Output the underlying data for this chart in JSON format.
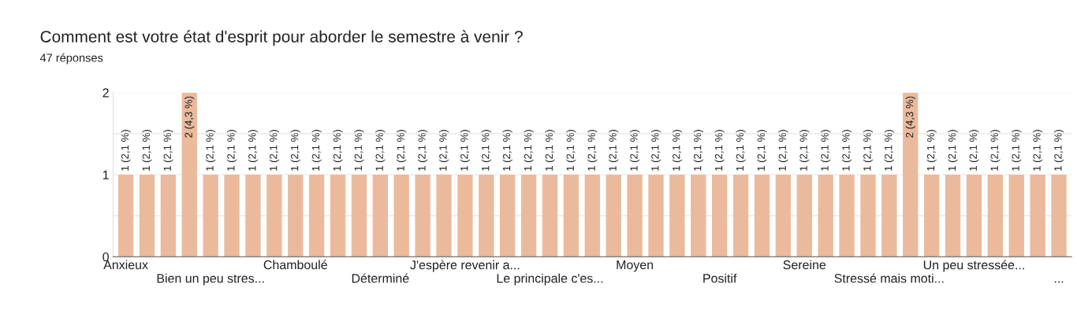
{
  "chart_data": {
    "type": "bar",
    "title": "Comment est votre état d'esprit pour aborder le semestre à venir ?",
    "subtitle": "47 réponses",
    "categories": [
      "Anxieux",
      null,
      null,
      null,
      "Bien un peu stres...",
      null,
      null,
      null,
      "Chamboulé",
      null,
      null,
      null,
      "Déterminé",
      null,
      null,
      null,
      "J'espère revenir a...",
      null,
      null,
      null,
      "Le principale c'es...",
      null,
      null,
      null,
      "Moyen",
      null,
      null,
      null,
      "Positif",
      null,
      null,
      null,
      "Sereine",
      null,
      null,
      null,
      "Stressé mais moti...",
      null,
      null,
      null,
      "Un peu stressée...",
      null,
      null,
      null,
      "..."
    ],
    "values": [
      1,
      1,
      1,
      2,
      1,
      1,
      1,
      1,
      1,
      1,
      1,
      1,
      1,
      1,
      1,
      1,
      1,
      1,
      1,
      1,
      1,
      1,
      1,
      1,
      1,
      1,
      1,
      1,
      1,
      1,
      1,
      1,
      1,
      1,
      1,
      1,
      1,
      2,
      1,
      1,
      1,
      1,
      1,
      1,
      1
    ],
    "value_labels": [
      "1 (2,1 %)",
      "1 (2,1 %)",
      "1 (2,1 %)",
      "2 (4,3 %)",
      "1 (2,1 %)",
      "1 (2,1 %)",
      "1 (2,1 %)",
      "1 (2,1 %)",
      "1 (2,1 %)",
      "1 (2,1 %)",
      "1 (2,1 %)",
      "1 (2,1 %)",
      "1 (2,1 %)",
      "1 (2,1 %)",
      "1 (2,1 %)",
      "1 (2,1 %)",
      "1 (2,1 %)",
      "1 (2,1 %)",
      "1 (2,1 %)",
      "1 (2,1 %)",
      "1 (2,1 %)",
      "1 (2,1 %)",
      "1 (2,1 %)",
      "1 (2,1 %)",
      "1 (2,1 %)",
      "1 (2,1 %)",
      "1 (2,1 %)",
      "1 (2,1 %)",
      "1 (2,1 %)",
      "1 (2,1 %)",
      "1 (2,1 %)",
      "1 (2,1 %)",
      "1 (2,1 %)",
      "1 (2,1 %)",
      "1 (2,1 %)",
      "1 (2,1 %)",
      "1 (2,1 %)",
      "2 (4,3 %)",
      "1 (2,1 %)",
      "1 (2,1 %)",
      "1 (2,1 %)",
      "1 (2,1 %)",
      "1 (2,1 %)",
      "1 (2,1 %)",
      "1 (2,1 %)"
    ],
    "color": "#ebba9d",
    "ylim": [
      0,
      2
    ],
    "yticks": [
      0,
      {
        "value": 0.5,
        "label": null
      },
      1,
      {
        "value": 1.5,
        "label": null
      },
      2
    ],
    "grid": "y"
  }
}
